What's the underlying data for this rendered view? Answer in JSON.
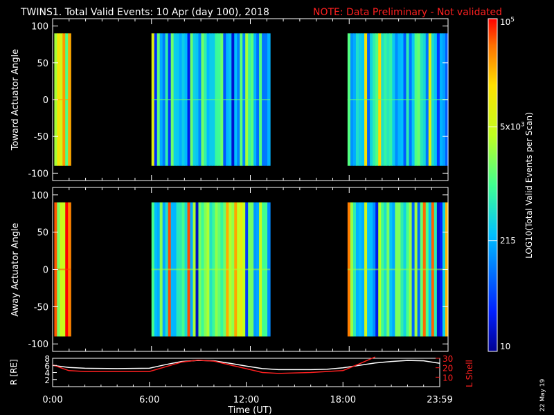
{
  "header": {
    "title": "TWINS1. Total Valid Events: 10 Apr (day 100), 2018",
    "note": "NOTE: Data Preliminary - Not validated"
  },
  "colors": {
    "background": "#000000",
    "axes": "#ffffff",
    "note": "#ff2020",
    "r_line": "#ffffff",
    "lshell_line": "#ff2020"
  },
  "chart_data": [
    {
      "type": "heatmap",
      "name": "toward",
      "ylabel": "Toward Actuator Angle",
      "x_unit": "hours UT",
      "xlim": [
        0,
        24
      ],
      "ylim": [
        -110,
        110
      ],
      "y_ticks": [
        100,
        50,
        0,
        -50,
        -100
      ],
      "angle_range": [
        -90,
        90
      ],
      "segments": [
        {
          "start": 0.1,
          "end": 1.1,
          "level": 0.72,
          "seed": 3
        },
        {
          "start": 6.0,
          "end": 13.2,
          "level": 0.4,
          "seed": 7
        },
        {
          "start": 17.9,
          "end": 24.0,
          "level": 0.38,
          "seed": 11
        }
      ],
      "colorbar": {
        "label": "LOG10(Total Valid Events per Scan)",
        "ticks": [
          "10",
          "215",
          "5x10^3",
          "10^5"
        ],
        "tick_values": [
          10,
          215,
          5000,
          100000
        ],
        "range": [
          10,
          100000
        ],
        "scale": "log",
        "colormap": "rainbow"
      }
    },
    {
      "type": "heatmap",
      "name": "away",
      "ylabel": "Away Actuator Angle",
      "x_unit": "hours UT",
      "xlim": [
        0,
        24
      ],
      "ylim": [
        -110,
        110
      ],
      "y_ticks": [
        100,
        50,
        0,
        -50,
        -100
      ],
      "angle_range": [
        -90,
        90
      ],
      "segments": [
        {
          "start": 0.1,
          "end": 1.1,
          "level": 0.8,
          "seed": 5
        },
        {
          "start": 6.0,
          "end": 13.2,
          "level": 0.48,
          "seed": 13
        },
        {
          "start": 17.9,
          "end": 24.0,
          "level": 0.46,
          "seed": 17
        }
      ]
    },
    {
      "type": "line",
      "name": "orbit",
      "xlabel": "Time (UT)",
      "x_tick_labels": [
        "0:00",
        "6:00",
        "12:00",
        "18:00",
        "23:59"
      ],
      "x_tick_values": [
        0,
        6,
        12,
        18,
        24
      ],
      "left_axis": {
        "label": "R [RE]",
        "ticks": [
          2,
          4,
          6,
          8
        ],
        "lim": [
          0,
          8
        ]
      },
      "right_axis": {
        "label": "L Shell",
        "ticks": [
          10,
          20,
          30
        ],
        "lim": [
          0,
          30
        ]
      },
      "series": [
        {
          "axis": "left",
          "x": [
            0,
            1,
            2,
            4,
            6,
            7,
            8,
            9,
            10,
            11,
            12,
            13,
            14,
            16,
            17,
            18,
            19,
            20,
            21,
            22,
            23,
            24
          ],
          "y": [
            6.0,
            5.4,
            5.2,
            5.1,
            5.2,
            6.2,
            7.1,
            7.4,
            7.3,
            6.6,
            5.8,
            5.1,
            4.8,
            4.8,
            4.9,
            5.3,
            6.0,
            6.7,
            7.1,
            7.4,
            7.3,
            6.6
          ]
        },
        {
          "axis": "right",
          "x": [
            0,
            1,
            2,
            4,
            6,
            7,
            8,
            9,
            10,
            11,
            12,
            13,
            14,
            16,
            17,
            18,
            19,
            20
          ],
          "y": [
            23,
            17,
            16,
            16,
            16,
            21,
            26,
            28,
            27,
            23,
            19,
            15,
            14,
            15,
            16,
            17,
            24,
            32
          ]
        }
      ]
    }
  ],
  "labels": {
    "panel1_y": "Toward Actuator Angle",
    "panel2_y": "Away Actuator Angle",
    "r_axis_label": "R [RE]",
    "lshell_label": "L Shell",
    "x_axis_label": "Time (UT)",
    "date_stamp": "22 May 19",
    "colorbar_label": "LOG10(Total Valid Events per Scan)"
  }
}
